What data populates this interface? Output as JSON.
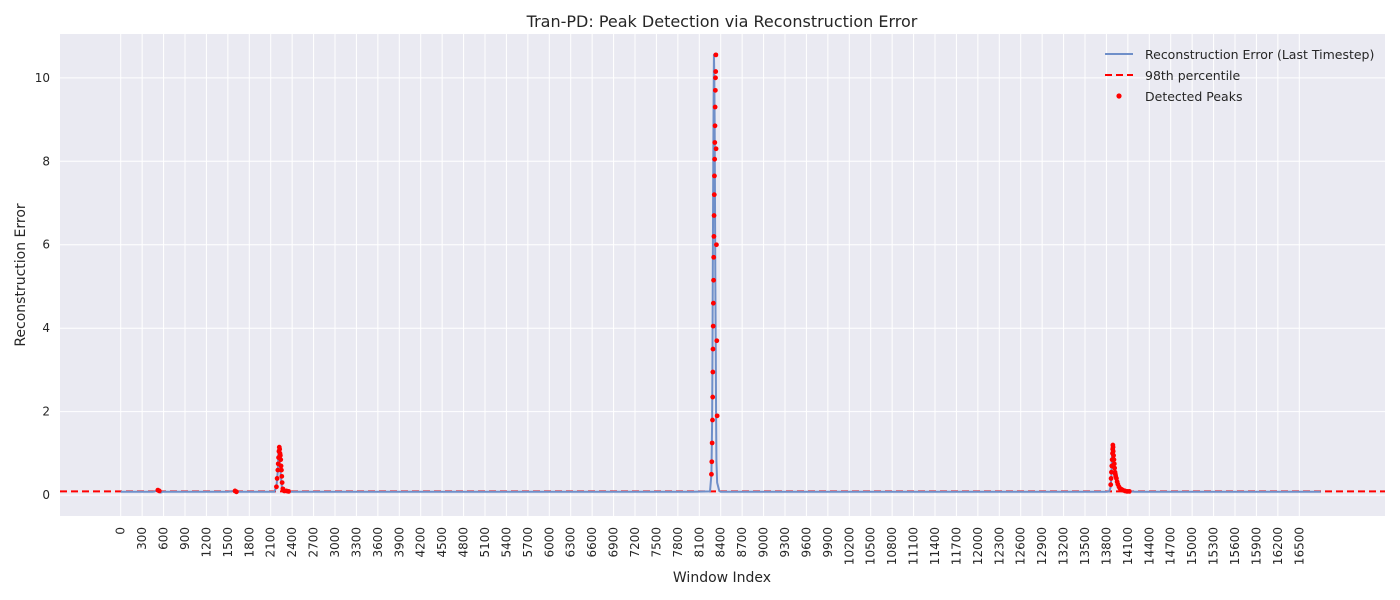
{
  "chart_data": {
    "type": "line",
    "title": "Tran-PD: Peak Detection via Reconstruction Error",
    "xlabel": "Window Index",
    "ylabel": "Reconstruction Error",
    "xlim": [
      -850,
      17700
    ],
    "ylim": [
      -0.5,
      11.05
    ],
    "xticks": [
      0,
      300,
      600,
      900,
      1200,
      1500,
      1800,
      2100,
      2400,
      2700,
      3000,
      3300,
      3600,
      3900,
      4200,
      4500,
      4800,
      5100,
      5400,
      5700,
      6000,
      6300,
      6600,
      6900,
      7200,
      7500,
      7800,
      8100,
      8400,
      8700,
      9000,
      9300,
      9600,
      9900,
      10200,
      10500,
      10800,
      11100,
      11400,
      11700,
      12000,
      12300,
      12600,
      12900,
      13200,
      13500,
      13800,
      14100,
      14400,
      14700,
      15000,
      15300,
      15600,
      15900,
      16200,
      16500
    ],
    "yticks": [
      0,
      2,
      4,
      6,
      8,
      10
    ],
    "grid": true,
    "legend_position": "top-right",
    "threshold": {
      "name": "98th percentile",
      "value": 0.09,
      "color": "#ff0000"
    },
    "series": [
      {
        "name": "Reconstruction Error (Last Timestep)",
        "color": "#6f8fc9",
        "x": [
          0,
          450,
          500,
          520,
          540,
          560,
          580,
          1500,
          1600,
          1620,
          1640,
          1700,
          2150,
          2180,
          2200,
          2205,
          2210,
          2215,
          2220,
          2225,
          2230,
          2240,
          2250,
          2260,
          2280,
          2300,
          2400,
          3000,
          4000,
          5000,
          6000,
          7000,
          8000,
          8250,
          8270,
          8280,
          8285,
          8290,
          8295,
          8300,
          8305,
          8310,
          8315,
          8320,
          8325,
          8330,
          8335,
          8340,
          8350,
          8380,
          8400,
          9000,
          10000,
          11000,
          12000,
          13000,
          13800,
          13840,
          13860,
          13870,
          13875,
          13880,
          13885,
          13890,
          13895,
          13900,
          13910,
          13920,
          13930,
          13940,
          13960,
          13990,
          14020,
          14060,
          14120,
          14200,
          15000,
          16000,
          16800
        ],
        "y": [
          0.08,
          0.08,
          0.1,
          0.12,
          0.08,
          0.06,
          0.08,
          0.08,
          0.1,
          0.07,
          0.08,
          0.08,
          0.08,
          0.2,
          0.6,
          0.9,
          1.1,
          1.15,
          1.0,
          0.85,
          0.7,
          0.5,
          0.3,
          0.15,
          0.1,
          0.09,
          0.08,
          0.08,
          0.08,
          0.08,
          0.08,
          0.08,
          0.08,
          0.09,
          0.5,
          1.8,
          3.5,
          5.7,
          7.6,
          9.3,
          10.55,
          10.1,
          9.0,
          7.0,
          5.0,
          3.7,
          2.0,
          0.8,
          0.3,
          0.1,
          0.08,
          0.08,
          0.08,
          0.08,
          0.08,
          0.08,
          0.08,
          0.09,
          0.2,
          0.5,
          0.8,
          1.05,
          1.2,
          1.1,
          0.95,
          0.8,
          0.6,
          0.5,
          0.4,
          0.3,
          0.22,
          0.16,
          0.12,
          0.1,
          0.09,
          0.08,
          0.08,
          0.08,
          0.08
        ]
      },
      {
        "name": "Detected Peaks",
        "type": "scatter",
        "color": "#ff0000",
        "x": [
          520,
          540,
          1600,
          1620,
          2180,
          2190,
          2200,
          2205,
          2210,
          2215,
          2220,
          2225,
          2230,
          2235,
          2240,
          2245,
          2250,
          2255,
          2260,
          2270,
          2290,
          2320,
          2350,
          8270,
          8275,
          8280,
          8285,
          8288,
          8290,
          8292,
          8295,
          8297,
          8300,
          8302,
          8305,
          8307,
          8310,
          8312,
          8315,
          8317,
          8320,
          8322,
          8325,
          8327,
          8330,
          8332,
          8335,
          8340,
          8345,
          8350,
          13860,
          13865,
          13870,
          13875,
          13880,
          13885,
          13888,
          13890,
          13893,
          13895,
          13900,
          13905,
          13910,
          13915,
          13920,
          13925,
          13930,
          13940,
          13950,
          13960,
          13975,
          13990,
          14010,
          14030,
          14060,
          14090,
          14120
        ],
        "y": [
          0.12,
          0.1,
          0.1,
          0.08,
          0.2,
          0.4,
          0.6,
          0.75,
          0.9,
          1.05,
          1.15,
          1.1,
          1.0,
          0.95,
          0.85,
          0.7,
          0.6,
          0.45,
          0.3,
          0.15,
          0.1,
          0.1,
          0.09,
          0.5,
          0.8,
          1.25,
          1.8,
          2.35,
          2.95,
          3.5,
          4.05,
          4.6,
          5.15,
          5.7,
          6.2,
          6.7,
          7.2,
          7.65,
          8.05,
          8.45,
          8.85,
          9.3,
          9.7,
          10.0,
          10.15,
          10.55,
          8.3,
          6.0,
          3.7,
          1.9,
          0.25,
          0.4,
          0.55,
          0.7,
          0.85,
          1.0,
          1.1,
          1.2,
          1.15,
          1.05,
          0.95,
          0.85,
          0.75,
          0.65,
          0.55,
          0.5,
          0.45,
          0.4,
          0.32,
          0.26,
          0.2,
          0.16,
          0.14,
          0.12,
          0.1,
          0.09,
          0.09
        ]
      }
    ]
  }
}
